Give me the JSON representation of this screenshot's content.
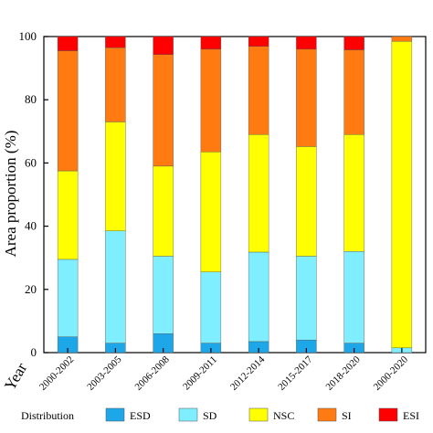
{
  "chart_data": {
    "type": "bar",
    "stacked": true,
    "xlabel": "Year",
    "ylabel": "Area proportion (%)",
    "ylim": [
      0,
      100
    ],
    "yticks": [
      "0",
      "20",
      "40",
      "60",
      "80",
      "100"
    ],
    "categories": [
      "2000-2002",
      "2003-2005",
      "2006-2008",
      "2009-2011",
      "2012-2014",
      "2015-2017",
      "2018-2020",
      "2000-2020"
    ],
    "legend_title": "Distribution",
    "legend_position": "bottom",
    "series": [
      {
        "name": "ESD",
        "color": "#1ea7e8",
        "values": [
          5,
          3,
          6,
          3,
          3.5,
          4,
          3,
          0
        ]
      },
      {
        "name": "SD",
        "color": "#7feeff",
        "values": [
          24.5,
          35.5,
          24.5,
          22.5,
          28.3,
          26.5,
          29,
          1.5
        ]
      },
      {
        "name": "NSC",
        "color": "#ffff00",
        "values": [
          28,
          34.5,
          28.5,
          38,
          37.2,
          34.7,
          37,
          97
        ]
      },
      {
        "name": "SI",
        "color": "#ff7a10",
        "values": [
          38,
          23.5,
          35.3,
          32.5,
          27.9,
          30.8,
          26.8,
          1.5
        ]
      },
      {
        "name": "ESI",
        "color": "#ff0000",
        "values": [
          4.5,
          3.5,
          5.7,
          4,
          3.1,
          4,
          4.2,
          0
        ]
      }
    ]
  }
}
